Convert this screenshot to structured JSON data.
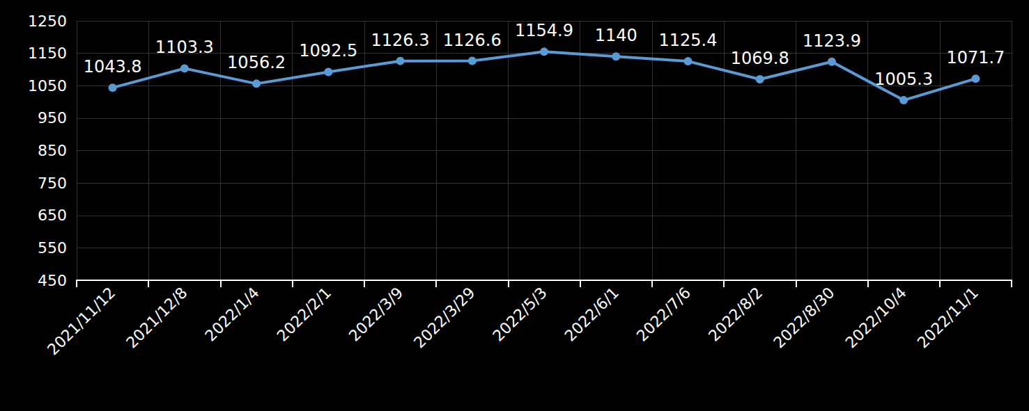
{
  "chart_data": {
    "type": "line",
    "categories": [
      "2021/11/12",
      "2021/12/8",
      "2022/1/4",
      "2022/2/1",
      "2022/3/9",
      "2022/3/29",
      "2022/5/3",
      "2022/6/1",
      "2022/7/6",
      "2022/8/2",
      "2022/8/30",
      "2022/10/4",
      "2022/11/1"
    ],
    "values": [
      1043.8,
      1103.3,
      1056.2,
      1092.5,
      1126.3,
      1126.6,
      1154.9,
      1140,
      1125.4,
      1069.8,
      1123.9,
      1005.3,
      1071.7
    ],
    "color": "#5b9bd5",
    "ylim": [
      450,
      1250
    ],
    "yticks": [
      450,
      550,
      650,
      750,
      850,
      950,
      1050,
      1150,
      1250
    ],
    "grid": true,
    "data_labels": true,
    "marker": "circle",
    "line_style": "solid"
  }
}
